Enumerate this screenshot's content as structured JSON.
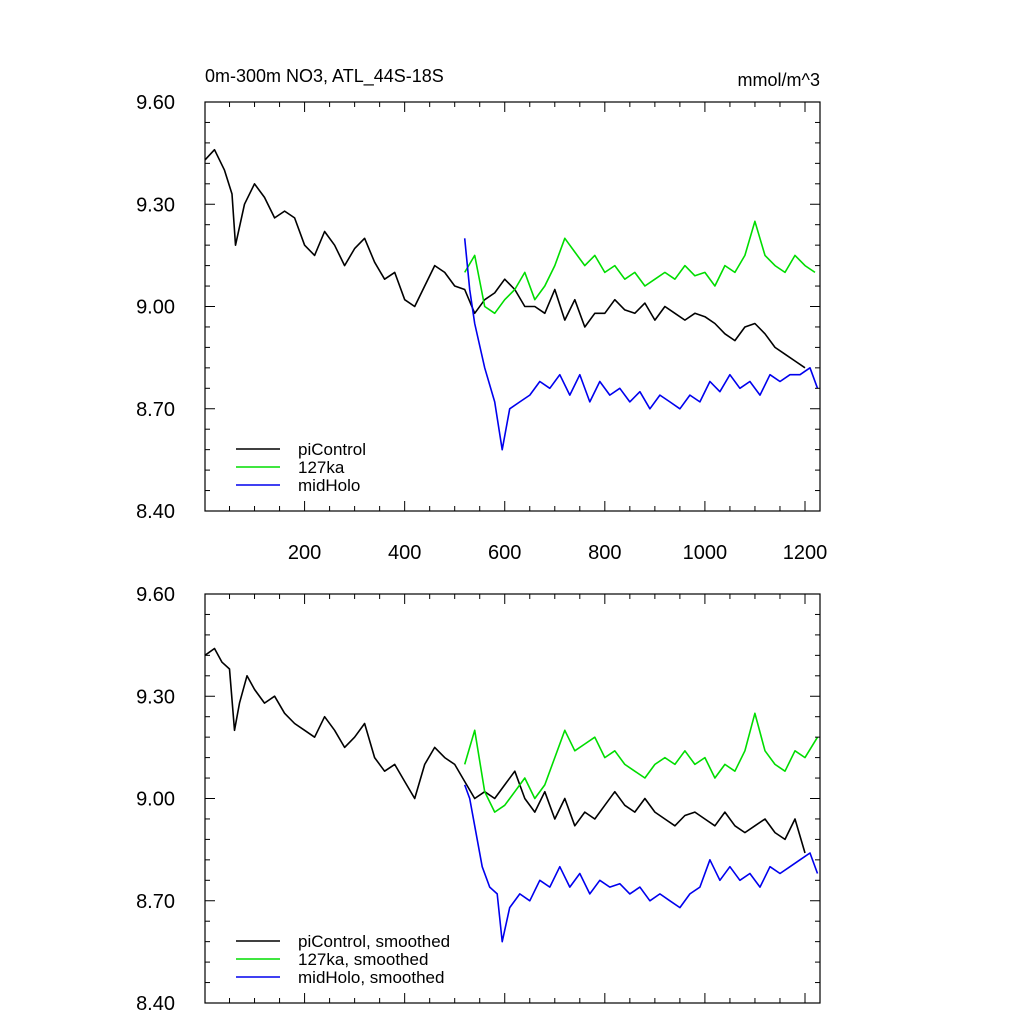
{
  "chart_data": [
    {
      "type": "line",
      "title": "0m-300m NO3, ATL_44S-18S",
      "units": "mmol/m^3",
      "xlim": [
        1,
        1230
      ],
      "ylim": [
        8.4,
        9.6
      ],
      "xticks": [
        200,
        400,
        600,
        800,
        1000,
        1200
      ],
      "yticks": [
        8.4,
        8.7,
        9.0,
        9.3,
        9.6
      ],
      "ytick_labels": [
        "8.40",
        "8.70",
        "9.00",
        "9.30",
        "9.60"
      ],
      "legend_position": "bottom-left",
      "series": [
        {
          "name": "piControl",
          "color": "#000000",
          "x": [
            1,
            20,
            40,
            55,
            62,
            80,
            100,
            120,
            140,
            160,
            180,
            200,
            220,
            240,
            260,
            280,
            300,
            320,
            340,
            360,
            380,
            400,
            420,
            440,
            460,
            480,
            500,
            520,
            540,
            560,
            580,
            600,
            620,
            640,
            660,
            680,
            700,
            720,
            740,
            760,
            780,
            800,
            820,
            840,
            860,
            880,
            900,
            920,
            940,
            960,
            980,
            1000,
            1020,
            1040,
            1060,
            1080,
            1100,
            1120,
            1140,
            1160,
            1180,
            1200
          ],
          "y": [
            9.43,
            9.46,
            9.4,
            9.33,
            9.18,
            9.3,
            9.36,
            9.32,
            9.26,
            9.28,
            9.26,
            9.18,
            9.15,
            9.22,
            9.18,
            9.12,
            9.17,
            9.2,
            9.13,
            9.08,
            9.1,
            9.02,
            9.0,
            9.06,
            9.12,
            9.1,
            9.06,
            9.05,
            8.98,
            9.02,
            9.04,
            9.08,
            9.05,
            9.0,
            9.0,
            8.98,
            9.05,
            8.96,
            9.02,
            8.94,
            8.98,
            8.98,
            9.02,
            8.99,
            8.98,
            9.01,
            8.96,
            9.0,
            8.98,
            8.96,
            8.98,
            8.97,
            8.95,
            8.92,
            8.9,
            8.94,
            8.95,
            8.92,
            8.88,
            8.86,
            8.84,
            8.82
          ]
        },
        {
          "name": "127ka",
          "color": "#00dd00",
          "x": [
            520,
            540,
            560,
            580,
            600,
            620,
            640,
            660,
            680,
            700,
            720,
            740,
            760,
            780,
            800,
            820,
            840,
            860,
            880,
            900,
            920,
            940,
            960,
            980,
            1000,
            1020,
            1040,
            1060,
            1080,
            1100,
            1120,
            1140,
            1160,
            1180,
            1200,
            1220
          ],
          "y": [
            9.1,
            9.15,
            9.0,
            8.98,
            9.02,
            9.05,
            9.1,
            9.02,
            9.06,
            9.12,
            9.2,
            9.16,
            9.12,
            9.15,
            9.1,
            9.12,
            9.08,
            9.1,
            9.06,
            9.08,
            9.1,
            9.08,
            9.12,
            9.09,
            9.1,
            9.06,
            9.12,
            9.1,
            9.15,
            9.25,
            9.15,
            9.12,
            9.1,
            9.15,
            9.12,
            9.1
          ]
        },
        {
          "name": "midHolo",
          "color": "#0000ee",
          "x": [
            520,
            530,
            540,
            560,
            580,
            595,
            610,
            630,
            650,
            670,
            690,
            710,
            730,
            750,
            770,
            790,
            810,
            830,
            850,
            870,
            890,
            910,
            930,
            950,
            970,
            990,
            1010,
            1030,
            1050,
            1070,
            1090,
            1110,
            1130,
            1150,
            1170,
            1190,
            1210,
            1225
          ],
          "y": [
            9.2,
            9.05,
            8.95,
            8.82,
            8.72,
            8.58,
            8.7,
            8.72,
            8.74,
            8.78,
            8.76,
            8.8,
            8.74,
            8.8,
            8.72,
            8.78,
            8.74,
            8.76,
            8.72,
            8.75,
            8.7,
            8.74,
            8.72,
            8.7,
            8.74,
            8.72,
            8.78,
            8.75,
            8.8,
            8.76,
            8.78,
            8.74,
            8.8,
            8.78,
            8.8,
            8.8,
            8.82,
            8.76
          ]
        }
      ]
    },
    {
      "type": "line",
      "title": "",
      "xlim": [
        1,
        1230
      ],
      "ylim": [
        8.4,
        9.6
      ],
      "xticks": [
        200,
        400,
        600,
        800,
        1000,
        1200
      ],
      "yticks": [
        8.4,
        8.7,
        9.0,
        9.3,
        9.6
      ],
      "ytick_labels": [
        "8.40",
        "8.70",
        "9.00",
        "9.30",
        "9.60"
      ],
      "legend_position": "bottom-left",
      "series": [
        {
          "name": "piControl, smoothed",
          "color": "#000000",
          "x": [
            1,
            20,
            35,
            50,
            60,
            70,
            85,
            100,
            120,
            140,
            160,
            180,
            200,
            220,
            240,
            260,
            280,
            300,
            320,
            340,
            360,
            380,
            400,
            420,
            440,
            460,
            480,
            500,
            520,
            540,
            560,
            580,
            600,
            620,
            640,
            660,
            680,
            700,
            720,
            740,
            760,
            780,
            800,
            820,
            840,
            860,
            880,
            900,
            920,
            940,
            960,
            980,
            1000,
            1020,
            1040,
            1060,
            1080,
            1100,
            1120,
            1140,
            1160,
            1180,
            1200
          ],
          "y": [
            9.42,
            9.44,
            9.4,
            9.38,
            9.2,
            9.28,
            9.36,
            9.32,
            9.28,
            9.3,
            9.25,
            9.22,
            9.2,
            9.18,
            9.24,
            9.2,
            9.15,
            9.18,
            9.22,
            9.12,
            9.08,
            9.1,
            9.05,
            9.0,
            9.1,
            9.15,
            9.12,
            9.1,
            9.05,
            9.0,
            9.02,
            9.0,
            9.04,
            9.08,
            9.0,
            8.96,
            9.02,
            8.94,
            9.0,
            8.92,
            8.96,
            8.94,
            8.98,
            9.02,
            8.98,
            8.96,
            9.0,
            8.96,
            8.94,
            8.92,
            8.95,
            8.96,
            8.94,
            8.92,
            8.96,
            8.92,
            8.9,
            8.92,
            8.94,
            8.9,
            8.88,
            8.94,
            8.84
          ]
        },
        {
          "name": "127ka, smoothed",
          "color": "#00dd00",
          "x": [
            520,
            540,
            560,
            580,
            600,
            620,
            640,
            660,
            680,
            700,
            720,
            740,
            760,
            780,
            800,
            820,
            840,
            860,
            880,
            900,
            920,
            940,
            960,
            980,
            1000,
            1020,
            1040,
            1060,
            1080,
            1100,
            1120,
            1140,
            1160,
            1180,
            1200,
            1225
          ],
          "y": [
            9.1,
            9.2,
            9.02,
            8.96,
            8.98,
            9.02,
            9.06,
            9.0,
            9.04,
            9.12,
            9.2,
            9.14,
            9.16,
            9.18,
            9.12,
            9.14,
            9.1,
            9.08,
            9.06,
            9.1,
            9.12,
            9.1,
            9.14,
            9.1,
            9.12,
            9.06,
            9.1,
            9.08,
            9.14,
            9.25,
            9.14,
            9.1,
            9.08,
            9.14,
            9.12,
            9.18
          ]
        },
        {
          "name": "midHolo, smoothed",
          "color": "#0000ee",
          "x": [
            520,
            530,
            540,
            555,
            570,
            585,
            595,
            610,
            630,
            650,
            670,
            690,
            710,
            730,
            750,
            770,
            790,
            810,
            830,
            850,
            870,
            890,
            910,
            930,
            950,
            970,
            990,
            1010,
            1030,
            1050,
            1070,
            1090,
            1110,
            1130,
            1150,
            1170,
            1190,
            1210,
            1225
          ],
          "y": [
            9.04,
            9.0,
            8.92,
            8.8,
            8.74,
            8.72,
            8.58,
            8.68,
            8.72,
            8.7,
            8.76,
            8.74,
            8.8,
            8.74,
            8.78,
            8.72,
            8.76,
            8.74,
            8.75,
            8.72,
            8.74,
            8.7,
            8.72,
            8.7,
            8.68,
            8.72,
            8.74,
            8.82,
            8.76,
            8.8,
            8.76,
            8.78,
            8.74,
            8.8,
            8.78,
            8.8,
            8.82,
            8.84,
            8.78
          ]
        }
      ]
    }
  ]
}
